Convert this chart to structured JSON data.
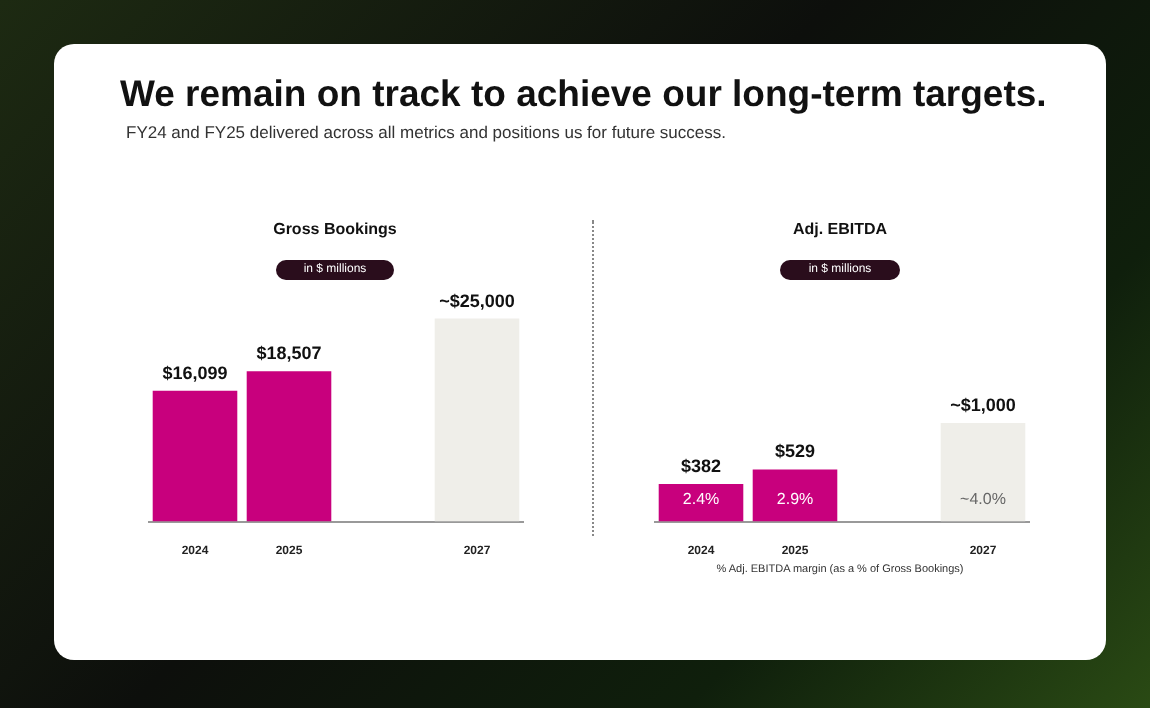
{
  "chart_data": [
    {
      "type": "other",
      "title": "We remain on track to achieve our long-term targets.",
      "subtitle": "FY24 and FY25 delivered across all metrics and positions us for future success."
    },
    {
      "type": "bar",
      "title": "Gross Bookings",
      "subtitle": "in $ millions",
      "categories": [
        "2024",
        "2025",
        null,
        "2027"
      ],
      "values": [
        16099,
        18507,
        null,
        25000
      ],
      "colors": [
        "#c8007d",
        "#c8007d",
        null,
        "#efeee9"
      ],
      "value_labels": [
        "$16,099",
        "$18,507",
        null,
        "~$25,000"
      ]
    },
    {
      "type": "bar",
      "title": "Adj. EBITDA",
      "subtitle": "in $ millions",
      "categories": [
        "2024",
        "2025",
        null,
        "2027"
      ],
      "values": [
        382,
        529,
        null,
        1000
      ],
      "colors": [
        "#c8007d",
        "#c8007d",
        null,
        "#efeee9"
      ],
      "value_labels": [
        "$382",
        "$529",
        null,
        "~$1,000"
      ],
      "annotations": [
        "2.4%",
        "2.9%",
        "~4.0%",
        "% Adj. EBITDA margin (as a % of Gross Bookings)"
      ]
    }
  ]
}
